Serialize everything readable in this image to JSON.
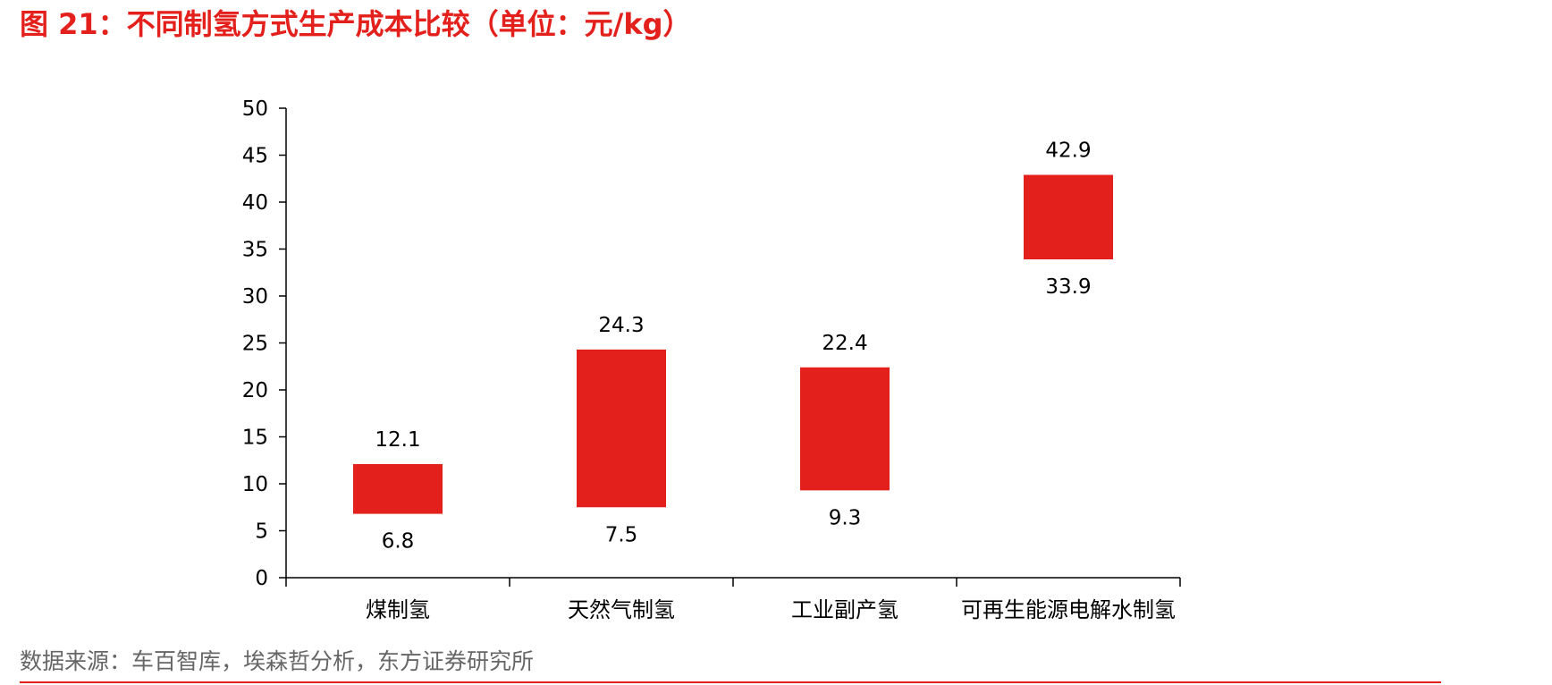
{
  "figure": {
    "title": "图 21：不同制氢方式生产成本比较（单位：元/kg）",
    "source": "数据来源：车百智库，埃森哲分析，东方证券研究所"
  },
  "colors": {
    "bar": "#e3201b",
    "accent": "#e3201b",
    "axis": "#000000",
    "text": "#000000",
    "source": "#666666"
  },
  "chart_data": {
    "type": "bar",
    "subtype": "floating-range",
    "categories": [
      "煤制氢",
      "天然气制氢",
      "工业副产氢",
      "可再生能源电解水制氢"
    ],
    "series": [
      {
        "low": [
          6.8,
          7.5,
          9.3,
          33.9
        ],
        "high": [
          12.1,
          24.3,
          22.4,
          42.9
        ]
      }
    ],
    "low_labels": [
      "6.8",
      "7.5",
      "9.3",
      "33.9"
    ],
    "high_labels": [
      "12.1",
      "24.3",
      "22.4",
      "42.9"
    ],
    "yticks": [
      0,
      5,
      10,
      15,
      20,
      25,
      30,
      35,
      40,
      45,
      50
    ],
    "ytick_labels": [
      "0",
      "5",
      "10",
      "15",
      "20",
      "25",
      "30",
      "35",
      "40",
      "45",
      "50"
    ],
    "ylim": [
      0,
      50
    ],
    "grid": false,
    "legend": "none"
  }
}
